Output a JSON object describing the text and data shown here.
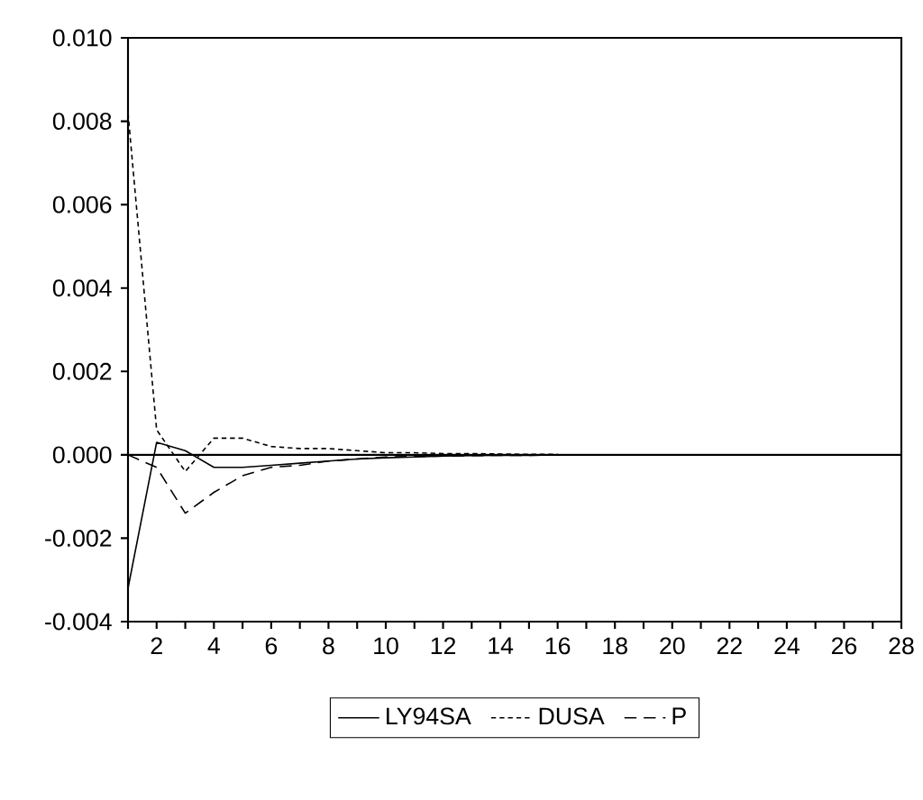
{
  "chart_data": {
    "type": "line",
    "x": [
      1,
      2,
      3,
      4,
      5,
      6,
      7,
      8,
      9,
      10,
      11,
      12,
      13,
      14,
      15,
      16
    ],
    "series": [
      {
        "name": "LY94SA",
        "color": "#000000",
        "line_style": "solid",
        "values": [
          -0.0032,
          0.0003,
          0.0001,
          -0.0003,
          -0.0003,
          -0.00025,
          -0.0002,
          -0.00015,
          -0.0001,
          -7e-05,
          -5e-05,
          -3e-05,
          -2e-05,
          -1e-05,
          -1e-05,
          0
        ]
      },
      {
        "name": "DUSA",
        "color": "#000000",
        "line_style": "dotted",
        "values": [
          0.0082,
          0.0006,
          -0.0004,
          0.0004,
          0.0004,
          0.0002,
          0.00015,
          0.00015,
          0.0001,
          5e-05,
          5e-05,
          3e-05,
          3e-05,
          2e-05,
          1e-05,
          1e-05
        ]
      },
      {
        "name": "P",
        "color": "#000000",
        "line_style": "dashed",
        "values": [
          0,
          -0.0003,
          -0.0014,
          -0.0009,
          -0.0005,
          -0.0003,
          -0.00025,
          -0.00015,
          -0.0001,
          -5e-05,
          -4e-05,
          -3e-05,
          -2e-05,
          -1e-05,
          -1e-05,
          0
        ]
      }
    ],
    "xlim": [
      1,
      28
    ],
    "xticks": [
      {
        "value": 1,
        "label": null
      },
      2,
      {
        "value": 3,
        "label": null
      },
      4,
      {
        "value": 5,
        "label": null
      },
      6,
      {
        "value": 7,
        "label": null
      },
      8,
      {
        "value": 9,
        "label": null
      },
      10,
      {
        "value": 11,
        "label": null
      },
      12,
      {
        "value": 13,
        "label": null
      },
      14,
      {
        "value": 15,
        "label": null
      },
      16,
      {
        "value": 17,
        "label": null
      },
      18,
      {
        "value": 19,
        "label": null
      },
      20,
      {
        "value": 21,
        "label": null
      },
      22,
      {
        "value": 23,
        "label": null
      },
      24,
      {
        "value": 25,
        "label": null
      },
      26,
      {
        "value": 27,
        "label": null
      },
      28
    ],
    "ylim": [
      -0.004,
      0.01
    ],
    "yticks": [
      {
        "value": -0.004,
        "label": "-0.004"
      },
      {
        "value": -0.002,
        "label": "-0.002"
      },
      {
        "value": 0,
        "label": "0.000"
      },
      {
        "value": 0.002,
        "label": "0.002"
      },
      {
        "value": 0.004,
        "label": "0.004"
      },
      {
        "value": 0.006,
        "label": "0.006"
      },
      {
        "value": 0.008,
        "label": "0.008"
      },
      {
        "value": 0.01,
        "label": "0.010"
      }
    ],
    "ref_lines": [
      {
        "axis": "y",
        "value": 0,
        "color": "#000000",
        "line_style": "solid"
      }
    ],
    "grid": false,
    "legend": "bottom"
  }
}
